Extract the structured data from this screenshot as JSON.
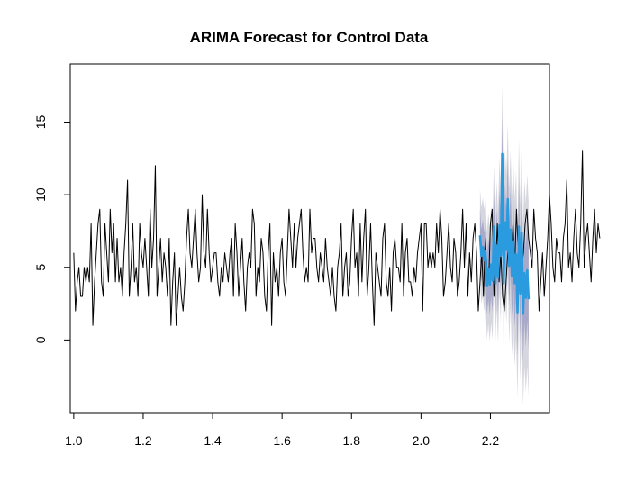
{
  "chart_data": {
    "type": "line",
    "title": "ARIMA Forecast for Control Data",
    "xlabel": "",
    "ylabel": "",
    "xlim": [
      0.99,
      2.37
    ],
    "ylim": [
      -5,
      19
    ],
    "x_ticks": [
      1.0,
      1.2,
      1.4,
      1.6,
      1.8,
      2.0,
      2.2
    ],
    "x_tick_labels": [
      "1.0",
      "1.2",
      "1.4",
      "1.6",
      "1.8",
      "2.0",
      "2.2"
    ],
    "y_ticks": [
      0,
      5,
      10,
      15
    ],
    "y_tick_labels": [
      "0",
      "5",
      "10",
      "15"
    ],
    "grid": false,
    "legend": "none",
    "colors": {
      "observed": "#000000",
      "forecast": "#2b9be0",
      "band_outer": "#d6d6de",
      "band_inner": "#a9a9c9",
      "axis": "#000000"
    },
    "observed": {
      "x_start": 1.0,
      "x_step": 0.005,
      "values": [
        6,
        2,
        4,
        5,
        3,
        3,
        5,
        4,
        5,
        4,
        8,
        1,
        4,
        6,
        8,
        9,
        4,
        3,
        8,
        6,
        4,
        9,
        6,
        8,
        4,
        7,
        4,
        5,
        3,
        6,
        8,
        11,
        3,
        5,
        8,
        4,
        5,
        3,
        8,
        6,
        5,
        7,
        5,
        3,
        9,
        5,
        7,
        12,
        3,
        5,
        7,
        4,
        6,
        5,
        3,
        7,
        1,
        4,
        6,
        1,
        3,
        5,
        3,
        2,
        4,
        7,
        9,
        6,
        5,
        7,
        9,
        6,
        4,
        5,
        10,
        6,
        5,
        9,
        6,
        4,
        5,
        6,
        6,
        4,
        3,
        5,
        4,
        6,
        5,
        4,
        6,
        7,
        3,
        8,
        6,
        3,
        5,
        7,
        4,
        2,
        5,
        6,
        5,
        9,
        8,
        3,
        5,
        4,
        7,
        6,
        3,
        2,
        6,
        8,
        1,
        6,
        4,
        5,
        3,
        6,
        7,
        4,
        3,
        6,
        9,
        7,
        5,
        8,
        5,
        7,
        8,
        9,
        6,
        4,
        5,
        4,
        9,
        6,
        7,
        7,
        5,
        4,
        6,
        5,
        4,
        7,
        5,
        4,
        3,
        5,
        3,
        2,
        5,
        6,
        8,
        3,
        5,
        6,
        3,
        4,
        7,
        9,
        5,
        6,
        3,
        8,
        4,
        7,
        9,
        3,
        5,
        8,
        4,
        1,
        6,
        5,
        4,
        3,
        7,
        8,
        4,
        3,
        5,
        2,
        6,
        7,
        5,
        5,
        4,
        8,
        3,
        6,
        7,
        4,
        4,
        3,
        5,
        4,
        6,
        7,
        8,
        2,
        8,
        8,
        5,
        6,
        5,
        6,
        5,
        8,
        6,
        9,
        7,
        3,
        4,
        6,
        8,
        5,
        4,
        7,
        6,
        3,
        4,
        6,
        9,
        5,
        8,
        3,
        6,
        4,
        7,
        8,
        6,
        2,
        4,
        6,
        3,
        7,
        5,
        4,
        8,
        9,
        3,
        5,
        8,
        4,
        6,
        3,
        2,
        4,
        6,
        7,
        5,
        8,
        5,
        9,
        6,
        4,
        5,
        6,
        8,
        9,
        7,
        6,
        5,
        9,
        7,
        6,
        2,
        4,
        6,
        3,
        5,
        7,
        10,
        8,
        5,
        4,
        7,
        6,
        6,
        4,
        7,
        8,
        11,
        5,
        6,
        4,
        7,
        9,
        6,
        5,
        8,
        13,
        5,
        7,
        8,
        6,
        4,
        7,
        9,
        6,
        8,
        7
      ]
    },
    "forecast": {
      "x_start": 2.17,
      "x_step": 0.004,
      "values": [
        7.2,
        5.8,
        6.4,
        5.5,
        6.1,
        3.7,
        4.9,
        3.8,
        5.2,
        4.1,
        7.8,
        3.9,
        6.5,
        4.3,
        7.9,
        5.8,
        12.8,
        3.9,
        8.1,
        6.2,
        9.7,
        5.1,
        7.6,
        4.4,
        6.8,
        3.9,
        5.9,
        1.9,
        7.8,
        3.2,
        7.4,
        1.8,
        4.6,
        2.9,
        4.8,
        2.8
      ],
      "inner_half_width": [
        1.8,
        1.8,
        1.9,
        1.9,
        2.0,
        2.0,
        2.1,
        2.1,
        2.2,
        2.2,
        2.3,
        2.3,
        2.4,
        2.4,
        2.5,
        2.5,
        2.6,
        2.6,
        2.7,
        2.7,
        2.8,
        2.8,
        2.9,
        2.9,
        3.0,
        3.0,
        3.1,
        3.1,
        3.2,
        3.2,
        3.3,
        3.3,
        3.4,
        3.4,
        3.5,
        3.5
      ],
      "outer_half_width": [
        3.2,
        3.3,
        3.4,
        3.5,
        3.6,
        3.7,
        3.8,
        3.9,
        4.0,
        4.1,
        4.2,
        4.3,
        4.4,
        4.5,
        4.6,
        4.7,
        4.8,
        4.9,
        5.0,
        5.1,
        5.2,
        5.3,
        5.4,
        5.5,
        5.6,
        5.7,
        5.8,
        5.9,
        6.0,
        6.1,
        6.2,
        6.3,
        6.4,
        6.5,
        6.6,
        6.7
      ]
    }
  }
}
